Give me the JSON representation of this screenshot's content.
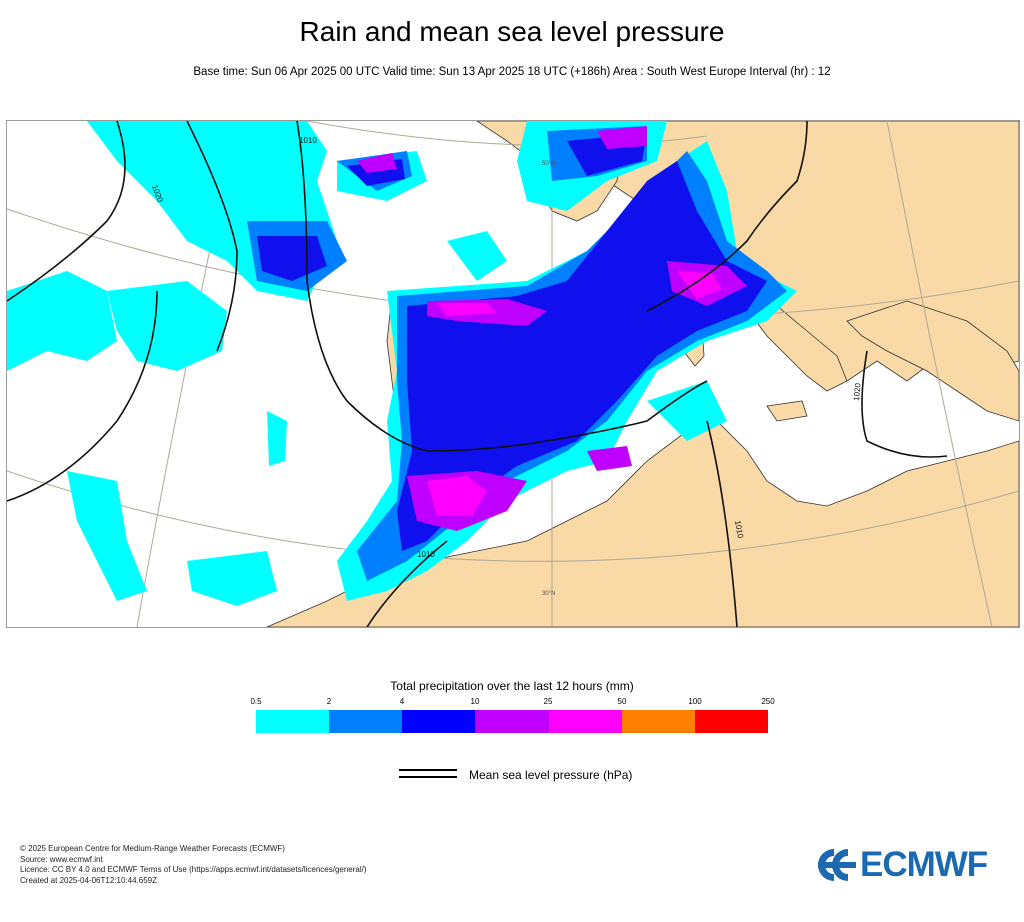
{
  "header": {
    "title": "Rain and mean sea level pressure",
    "subtitle": "Base time: Sun 06 Apr 2025 00 UTC Valid time: Sun 13 Apr 2025 18 UTC (+186h) Area : South West Europe Interval (hr) : 12"
  },
  "map": {
    "isobar_labels": [
      "1010",
      "1020",
      "1010",
      "1010",
      "1020"
    ],
    "lat_labels": [
      "50°N",
      "30°N"
    ],
    "colors": {
      "land": "#f9d9a6",
      "sea": "#ffffff",
      "graticule": "#b0a898"
    }
  },
  "legend": {
    "title": "Total precipitation over the last 12 hours (mm)",
    "ticks": [
      "0.5",
      "2",
      "4",
      "10",
      "25",
      "50",
      "100",
      "250"
    ],
    "colors": [
      "#00ffff",
      "#0080ff",
      "#0000ff",
      "#c000ff",
      "#ff00ff",
      "#ff8000",
      "#ff0000"
    ],
    "mslp_label": "Mean sea level pressure (hPa)"
  },
  "footer": {
    "line1": "© 2025 European Centre for Medium-Range Weather Forecasts (ECMWF)",
    "line2": "Source: www.ecmwf.int",
    "line3": "Licence: CC BY 4.0 and ECMWF Terms of Use (https://apps.ecmwf.int/datasets/licences/general/)",
    "line4": "Created at 2025-04-06T12:10:44.659Z"
  },
  "logo": {
    "text": "ECMWF",
    "color": "#1b6ab1"
  }
}
